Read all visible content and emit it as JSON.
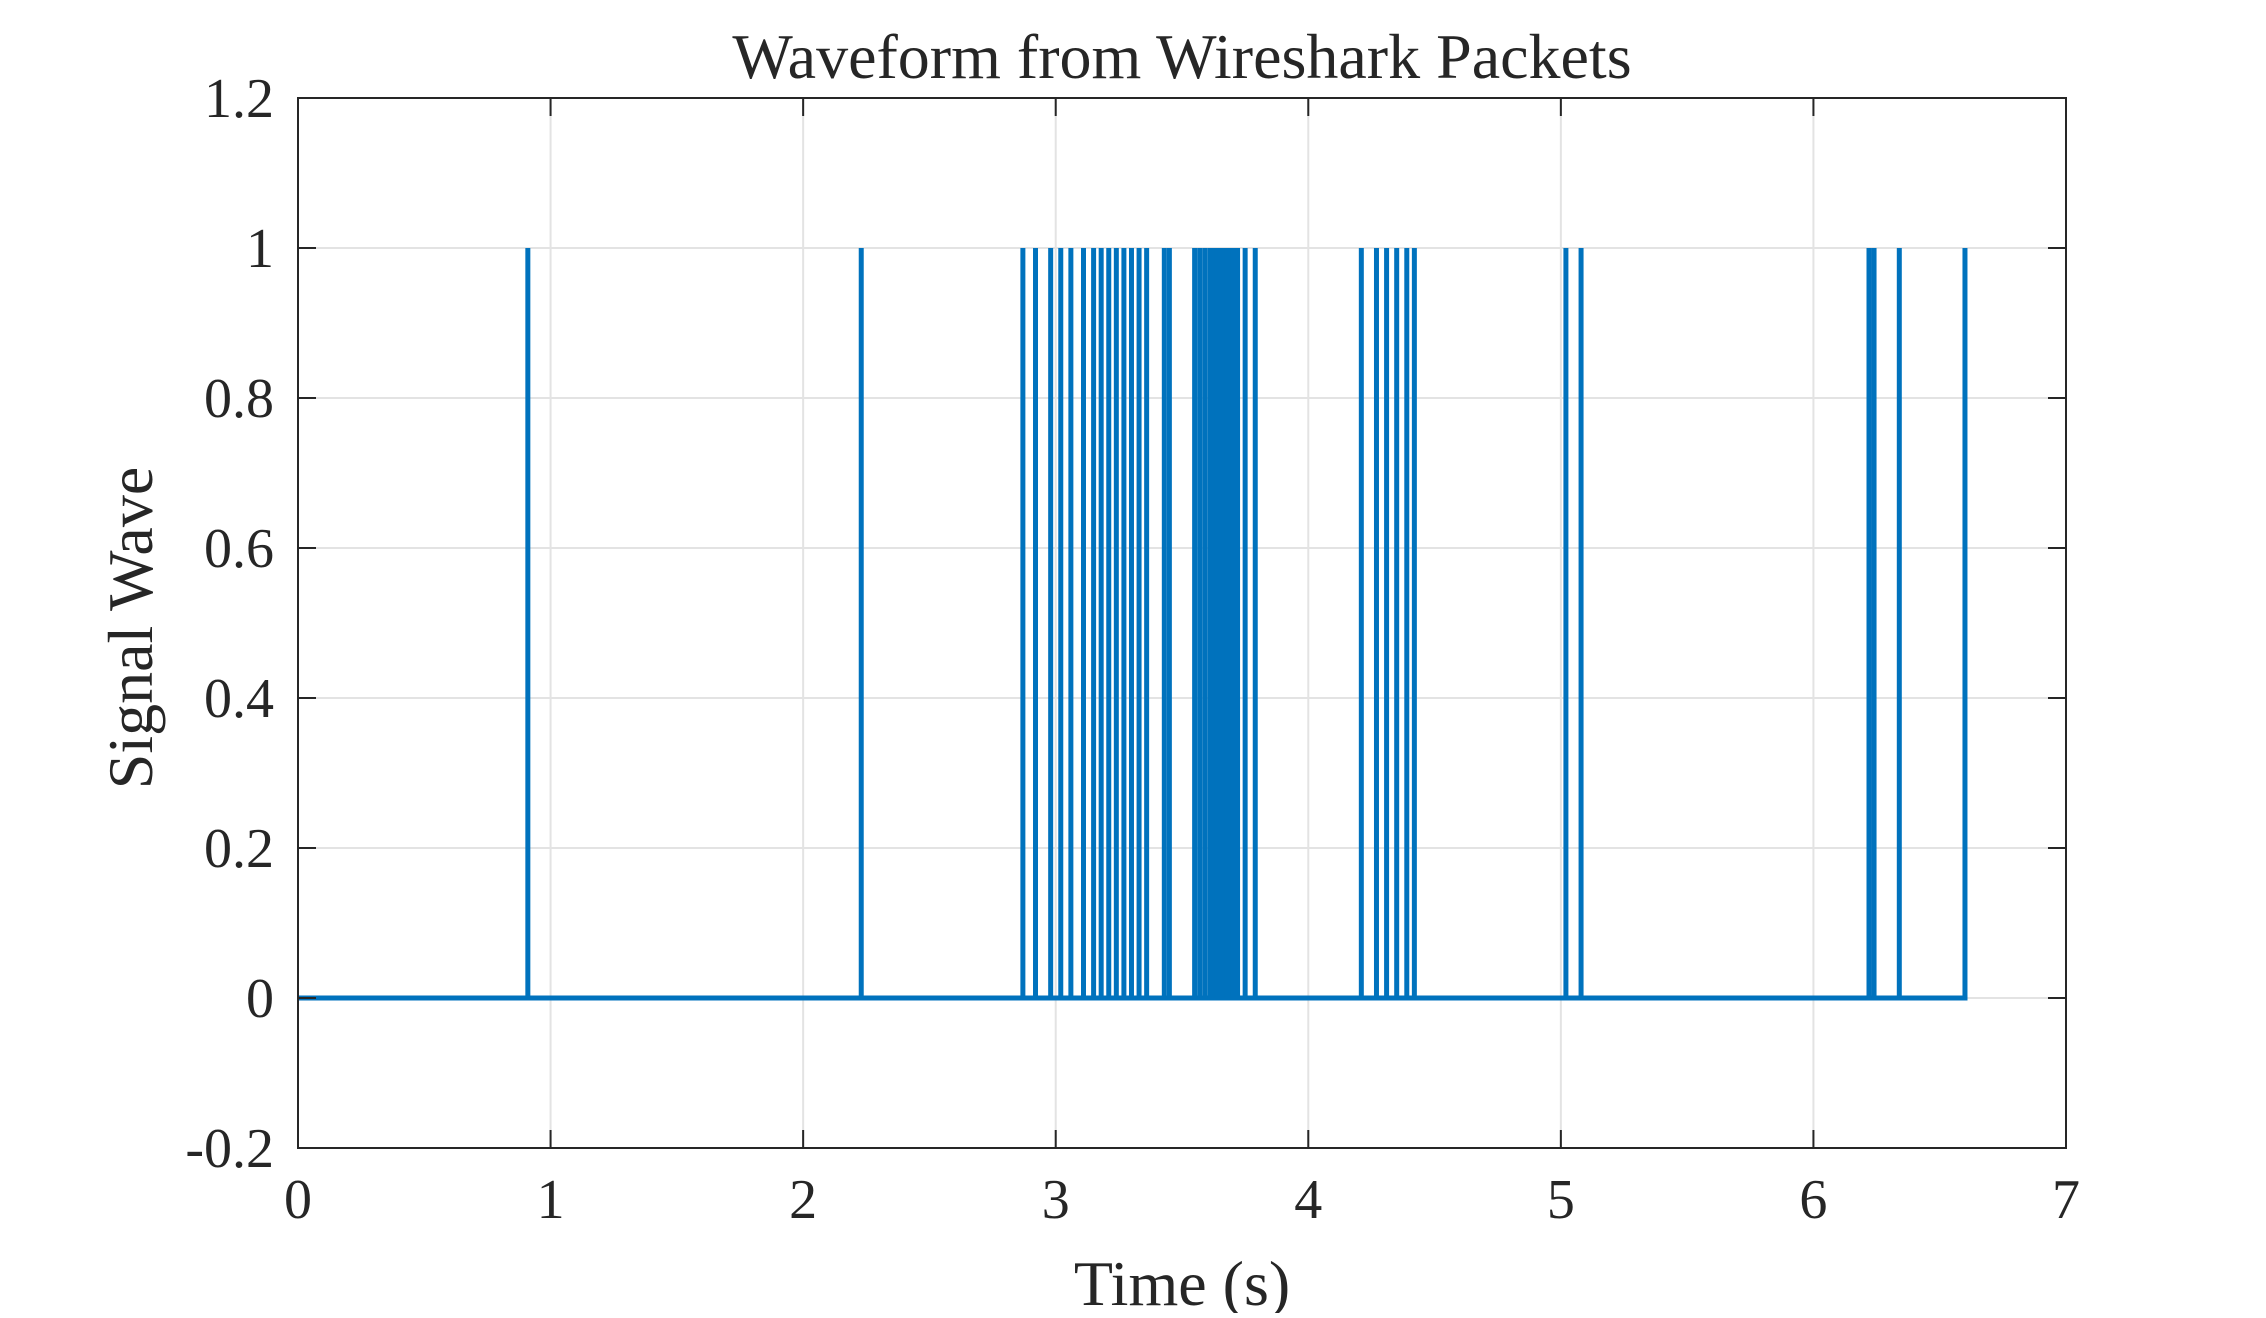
{
  "chart_data": {
    "type": "line",
    "title": "Waveform from Wireshark Packets",
    "xlabel": "Time (s)",
    "ylabel": "Signal Wave",
    "xlim": [
      0,
      7
    ],
    "ylim": [
      -0.2,
      1.2
    ],
    "xticks": [
      "0",
      "1",
      "2",
      "3",
      "4",
      "5",
      "6",
      "7"
    ],
    "yticks": [
      "-0.2",
      "0",
      "0.2",
      "0.4",
      "0.6",
      "0.8",
      "1",
      "1.2"
    ],
    "grid": true,
    "legend": null,
    "line_color": "#0072BD",
    "series": [
      {
        "style": "stem",
        "x": [
          0.91,
          2.23,
          2.87,
          2.92,
          2.98,
          3.02,
          3.06,
          3.11,
          3.15,
          3.18,
          3.21,
          3.24,
          3.27,
          3.3,
          3.33,
          3.36,
          3.43,
          3.45,
          3.55,
          3.57,
          3.59,
          3.61,
          3.62,
          3.63,
          3.64,
          3.65,
          3.66,
          3.67,
          3.68,
          3.69,
          3.7,
          3.71,
          3.72,
          3.75,
          3.79,
          4.21,
          4.27,
          4.31,
          4.35,
          4.39,
          4.42,
          5.02,
          5.08,
          6.22,
          6.24,
          6.34,
          6.6
        ],
        "values": [
          1,
          1,
          1,
          1,
          1,
          1,
          1,
          1,
          1,
          1,
          1,
          1,
          1,
          1,
          1,
          1,
          1,
          1,
          1,
          1,
          1,
          1,
          1,
          1,
          1,
          1,
          1,
          1,
          1,
          1,
          1,
          1,
          1,
          1,
          1,
          1,
          1,
          1,
          1,
          1,
          1,
          1,
          1,
          1,
          1,
          1,
          1
        ],
        "baseline": 0,
        "x_end": 6.61
      }
    ]
  }
}
